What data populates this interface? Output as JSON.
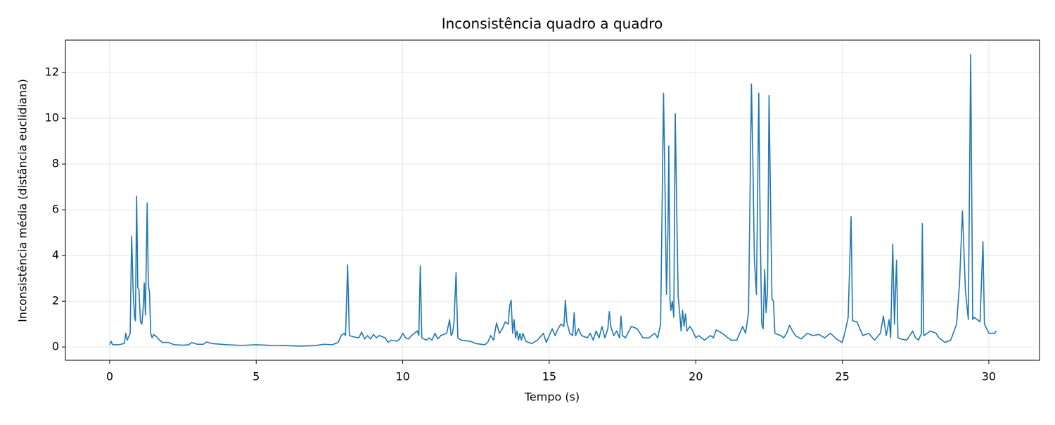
{
  "chart_data": {
    "type": "line",
    "title": "Inconsistência quadro a quadro",
    "x_label": "Tempo (s)",
    "y_label": "Inconsistência média (distância euclidiana)",
    "x": [
      0,
      0.05,
      0.1,
      0.3,
      0.5,
      0.55,
      0.6,
      0.7,
      0.75,
      0.8,
      0.85,
      0.88,
      0.92,
      0.96,
      1.0,
      1.05,
      1.1,
      1.15,
      1.18,
      1.22,
      1.28,
      1.32,
      1.36,
      1.4,
      1.45,
      1.5,
      1.6,
      1.7,
      1.8,
      2.0,
      2.2,
      2.5,
      2.7,
      2.8,
      2.9,
      3.0,
      3.2,
      3.3,
      3.5,
      4.0,
      4.5,
      5.0,
      5.5,
      6.0,
      6.5,
      7.0,
      7.3,
      7.6,
      7.8,
      7.9,
      8.0,
      8.05,
      8.12,
      8.18,
      8.3,
      8.5,
      8.6,
      8.7,
      8.8,
      8.9,
      9.0,
      9.1,
      9.2,
      9.4,
      9.5,
      9.6,
      9.8,
      9.9,
      10.0,
      10.1,
      10.2,
      10.3,
      10.5,
      10.55,
      10.6,
      10.65,
      10.8,
      10.9,
      11.0,
      11.1,
      11.2,
      11.3,
      11.5,
      11.6,
      11.65,
      11.7,
      11.75,
      11.82,
      11.88,
      12.0,
      12.3,
      12.5,
      12.8,
      12.9,
      13.0,
      13.1,
      13.2,
      13.3,
      13.4,
      13.5,
      13.6,
      13.65,
      13.7,
      13.75,
      13.8,
      13.85,
      13.9,
      13.95,
      14.0,
      14.05,
      14.1,
      14.2,
      14.4,
      14.6,
      14.8,
      14.9,
      15.0,
      15.1,
      15.2,
      15.3,
      15.4,
      15.5,
      15.55,
      15.6,
      15.7,
      15.8,
      15.85,
      15.9,
      16.0,
      16.1,
      16.3,
      16.4,
      16.5,
      16.6,
      16.7,
      16.8,
      16.9,
      17.0,
      17.05,
      17.1,
      17.2,
      17.3,
      17.4,
      17.45,
      17.5,
      17.6,
      17.8,
      18.0,
      18.2,
      18.4,
      18.6,
      18.7,
      18.8,
      18.85,
      18.9,
      18.95,
      19.0,
      19.05,
      19.08,
      19.12,
      19.15,
      19.2,
      19.25,
      19.3,
      19.35,
      19.4,
      19.45,
      19.5,
      19.55,
      19.6,
      19.65,
      19.7,
      19.8,
      19.9,
      20.0,
      20.1,
      20.3,
      20.5,
      20.6,
      20.7,
      20.9,
      21.0,
      21.2,
      21.4,
      21.6,
      21.7,
      21.8,
      21.9,
      21.95,
      22.0,
      22.07,
      22.15,
      22.2,
      22.25,
      22.3,
      22.35,
      22.4,
      22.45,
      22.5,
      22.55,
      22.6,
      22.65,
      22.7,
      22.9,
      23.0,
      23.1,
      23.2,
      23.3,
      23.4,
      23.6,
      23.8,
      24.0,
      24.2,
      24.4,
      24.6,
      24.8,
      25.0,
      25.1,
      25.2,
      25.3,
      25.35,
      25.5,
      25.7,
      25.9,
      26.1,
      26.3,
      26.4,
      26.5,
      26.6,
      26.65,
      26.72,
      26.78,
      26.85,
      26.9,
      27.0,
      27.2,
      27.4,
      27.5,
      27.6,
      27.7,
      27.73,
      27.78,
      27.9,
      28.0,
      28.2,
      28.3,
      28.5,
      28.7,
      28.9,
      29.0,
      29.1,
      29.2,
      29.3,
      29.38,
      29.45,
      29.5,
      29.7,
      29.8,
      29.85,
      30.0,
      30.2,
      30.25
    ],
    "series": [
      {
        "name": "Inconsistência",
        "color": "#1f77b4",
        "values": [
          0.1,
          0.25,
          0.1,
          0.1,
          0.15,
          0.6,
          0.3,
          0.6,
          4.85,
          2.5,
          1.3,
          1.15,
          6.6,
          2.6,
          2.5,
          1.1,
          1.0,
          1.8,
          2.8,
          1.4,
          6.3,
          2.7,
          2.4,
          0.6,
          0.4,
          0.55,
          0.45,
          0.3,
          0.2,
          0.2,
          0.1,
          0.08,
          0.1,
          0.2,
          0.15,
          0.12,
          0.12,
          0.22,
          0.15,
          0.1,
          0.07,
          0.1,
          0.07,
          0.06,
          0.04,
          0.06,
          0.12,
          0.1,
          0.2,
          0.5,
          0.6,
          0.5,
          3.6,
          0.5,
          0.45,
          0.4,
          0.65,
          0.35,
          0.5,
          0.35,
          0.55,
          0.4,
          0.5,
          0.4,
          0.2,
          0.3,
          0.25,
          0.35,
          0.6,
          0.4,
          0.35,
          0.5,
          0.7,
          0.5,
          3.55,
          0.4,
          0.3,
          0.4,
          0.3,
          0.6,
          0.35,
          0.5,
          0.6,
          1.2,
          0.5,
          0.6,
          1.1,
          3.25,
          0.4,
          0.3,
          0.25,
          0.15,
          0.1,
          0.2,
          0.5,
          0.3,
          1.05,
          0.6,
          0.8,
          1.1,
          1.0,
          1.8,
          2.05,
          0.6,
          1.2,
          0.4,
          0.7,
          0.3,
          0.6,
          0.3,
          0.6,
          0.25,
          0.15,
          0.3,
          0.6,
          0.2,
          0.5,
          0.8,
          0.5,
          0.8,
          1.0,
          0.9,
          2.05,
          1.1,
          0.6,
          0.5,
          1.5,
          0.5,
          0.8,
          0.5,
          0.4,
          0.6,
          0.3,
          0.7,
          0.4,
          0.9,
          0.4,
          0.8,
          1.55,
          0.9,
          0.5,
          0.7,
          0.4,
          1.35,
          0.5,
          0.4,
          0.9,
          0.8,
          0.4,
          0.4,
          0.6,
          0.4,
          1.0,
          6.0,
          11.1,
          7.0,
          2.3,
          5.0,
          8.8,
          2.1,
          1.6,
          2.0,
          1.3,
          10.2,
          6.0,
          2.2,
          1.5,
          0.7,
          1.6,
          0.9,
          1.45,
          0.7,
          0.9,
          0.7,
          0.4,
          0.5,
          0.3,
          0.5,
          0.4,
          0.75,
          0.6,
          0.5,
          0.3,
          0.3,
          0.9,
          0.6,
          1.5,
          11.5,
          8.0,
          3.8,
          2.3,
          11.1,
          5.0,
          1.0,
          0.8,
          3.4,
          1.5,
          2.5,
          11.0,
          6.5,
          2.1,
          2.0,
          0.6,
          0.5,
          0.4,
          0.6,
          0.95,
          0.7,
          0.5,
          0.35,
          0.6,
          0.5,
          0.55,
          0.4,
          0.6,
          0.35,
          0.2,
          0.7,
          1.3,
          5.7,
          1.15,
          1.1,
          0.5,
          0.6,
          0.3,
          0.6,
          1.35,
          0.5,
          1.2,
          0.4,
          4.5,
          1.0,
          3.8,
          0.4,
          0.35,
          0.3,
          0.7,
          0.4,
          0.3,
          0.6,
          5.4,
          0.5,
          0.6,
          0.7,
          0.6,
          0.4,
          0.2,
          0.3,
          1.0,
          2.8,
          5.95,
          2.5,
          1.2,
          12.8,
          1.2,
          1.3,
          1.1,
          4.6,
          1.0,
          0.6,
          0.6,
          0.7
        ]
      }
    ],
    "xlim": [
      -1.51,
      31.73
    ],
    "ylim": [
      -0.58,
      13.42
    ],
    "xticks": [
      0,
      5,
      10,
      15,
      20,
      25,
      30
    ],
    "yticks": [
      0,
      2,
      4,
      6,
      8,
      10,
      12
    ],
    "grid": true
  }
}
